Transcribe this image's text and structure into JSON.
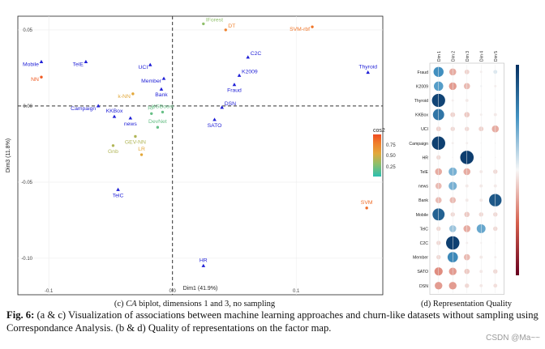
{
  "biplot": {
    "xlabel": "Dim1 (41.9%)",
    "ylabel": "Dim3 (11.8%)",
    "legend_title": "cos2",
    "legend_ticks": [
      "0.75",
      "0.50",
      "0.25"
    ],
    "caption_label": "(c)",
    "caption_italic": "CA",
    "caption_rest": "biplot, dimensions 1 and 3, no sampling"
  },
  "chart_data": {
    "type": "scatter",
    "title": "CA biplot, dimensions 1 and 3, no sampling",
    "xlabel": "Dim1 (41.9%)",
    "ylabel": "Dim3 (11.8%)",
    "xlim": [
      -0.125,
      0.17
    ],
    "ylim": [
      -0.124,
      0.059
    ],
    "x_ticks": [
      {
        "v": -0.1,
        "label": "-0.1"
      },
      {
        "v": 0.0,
        "label": "0.0"
      },
      {
        "v": 0.1,
        "label": "0.1"
      }
    ],
    "y_ticks": [
      {
        "v": 0.05,
        "label": "0.05"
      },
      {
        "v": 0.0,
        "label": "0.00"
      },
      {
        "v": -0.05,
        "label": "-0.05"
      },
      {
        "v": -0.1,
        "label": "-0.10"
      }
    ],
    "colorbar": {
      "label": "cos2",
      "min": 0.1,
      "max": 0.9
    },
    "points": [
      {
        "label": "IForest",
        "x": 0.025,
        "y": 0.054,
        "cos2": 0.35,
        "shape": "circle",
        "align": "left"
      },
      {
        "label": "DT",
        "x": 0.043,
        "y": 0.05,
        "cos2": 0.78,
        "shape": "circle",
        "align": "left"
      },
      {
        "label": "SVM-rbf",
        "x": 0.113,
        "y": 0.052,
        "cos2": 0.82,
        "shape": "circle",
        "align": "right"
      },
      {
        "label": "C2C",
        "x": 0.061,
        "y": 0.032,
        "cos2": 0.0,
        "shape": "triangle",
        "align": "left"
      },
      {
        "label": "Mobile",
        "x": -0.106,
        "y": 0.029,
        "cos2": 0.0,
        "shape": "triangle",
        "align": "right"
      },
      {
        "label": "TelE",
        "x": -0.07,
        "y": 0.029,
        "cos2": 0.0,
        "shape": "triangle",
        "align": "right"
      },
      {
        "label": "UCI",
        "x": -0.018,
        "y": 0.027,
        "cos2": 0.0,
        "shape": "triangle",
        "align": "right"
      },
      {
        "label": "Thyroid",
        "x": 0.158,
        "y": 0.022,
        "cos2": 0.0,
        "shape": "triangle",
        "align": "above"
      },
      {
        "label": "K2009",
        "x": 0.054,
        "y": 0.02,
        "cos2": 0.0,
        "shape": "triangle",
        "align": "left"
      },
      {
        "label": "NN",
        "x": -0.106,
        "y": 0.019,
        "cos2": 0.9,
        "shape": "circle",
        "align": "right"
      },
      {
        "label": "Member",
        "x": -0.007,
        "y": 0.018,
        "cos2": 0.0,
        "shape": "triangle",
        "align": "right"
      },
      {
        "label": "Fraud",
        "x": 0.05,
        "y": 0.014,
        "cos2": 0.0,
        "shape": "triangle",
        "align": "below"
      },
      {
        "label": "Bank",
        "x": -0.009,
        "y": 0.011,
        "cos2": 0.0,
        "shape": "triangle",
        "align": "below"
      },
      {
        "label": "k-NN",
        "x": -0.032,
        "y": 0.008,
        "cos2": 0.6,
        "shape": "circle",
        "align": "right"
      },
      {
        "label": "Campaign",
        "x": -0.06,
        "y": 0.0,
        "cos2": 0.0,
        "shape": "triangle",
        "align": "right"
      },
      {
        "label": "DSN",
        "x": 0.04,
        "y": -0.001,
        "cos2": 0.0,
        "shape": "triangle",
        "align": "left"
      },
      {
        "label": "KKBox",
        "x": -0.047,
        "y": -0.007,
        "cos2": 0.0,
        "shape": "triangle",
        "align": "above"
      },
      {
        "label": "RF",
        "x": -0.017,
        "y": -0.005,
        "cos2": 0.25,
        "shape": "circle",
        "align": "above"
      },
      {
        "label": "XGBoost",
        "x": -0.008,
        "y": -0.004,
        "cos2": 0.25,
        "shape": "circle",
        "align": "above"
      },
      {
        "label": "news",
        "x": -0.034,
        "y": -0.008,
        "cos2": 0.0,
        "shape": "triangle",
        "align": "below"
      },
      {
        "label": "SATO",
        "x": 0.034,
        "y": -0.009,
        "cos2": 0.0,
        "shape": "triangle",
        "align": "below"
      },
      {
        "label": "DevNet",
        "x": -0.012,
        "y": -0.014,
        "cos2": 0.25,
        "shape": "circle",
        "align": "above"
      },
      {
        "label": "GEV-NN",
        "x": -0.03,
        "y": -0.02,
        "cos2": 0.45,
        "shape": "circle",
        "align": "below"
      },
      {
        "label": "Gnb",
        "x": -0.048,
        "y": -0.026,
        "cos2": 0.45,
        "shape": "circle",
        "align": "below"
      },
      {
        "label": "LR",
        "x": -0.025,
        "y": -0.032,
        "cos2": 0.6,
        "shape": "circle",
        "align": "above"
      },
      {
        "label": "TelC",
        "x": -0.044,
        "y": -0.055,
        "cos2": 0.0,
        "shape": "triangle",
        "align": "below"
      },
      {
        "label": "SVM",
        "x": 0.157,
        "y": -0.067,
        "cos2": 0.85,
        "shape": "circle",
        "align": "above"
      },
      {
        "label": "HR",
        "x": 0.025,
        "y": -0.105,
        "cos2": 0.0,
        "shape": "triangle",
        "align": "above"
      }
    ]
  },
  "corrplot": {
    "columns": [
      "Dim 1",
      "Dim 2",
      "Dim 3",
      "Dim 4",
      "Dim 5"
    ],
    "rows": [
      "Fraud",
      "K2009",
      "Thyroid",
      "KKBox",
      "UCI",
      "Campaign",
      "HR",
      "TelE",
      "news",
      "Bank",
      "Mobile",
      "TelC",
      "C2C",
      "Member",
      "SATO",
      "DSN"
    ],
    "values": [
      [
        0.52,
        0.25,
        0.12,
        0.03,
        0.08
      ],
      [
        0.45,
        0.3,
        0.2,
        0.02,
        0.03
      ],
      [
        0.9,
        0.03,
        0.05,
        0.01,
        0.01
      ],
      [
        0.65,
        0.12,
        0.15,
        0.03,
        0.05
      ],
      [
        0.12,
        0.1,
        0.1,
        0.12,
        0.25
      ],
      [
        0.92,
        0.03,
        0.03,
        0.01,
        0.01
      ],
      [
        0.1,
        0.01,
        0.93,
        0.01,
        0.01
      ],
      [
        0.25,
        0.35,
        0.25,
        0.05,
        0.1
      ],
      [
        0.2,
        0.35,
        0.05,
        0.05,
        0.05
      ],
      [
        0.2,
        0.2,
        0.05,
        0.05,
        0.8
      ],
      [
        0.75,
        0.1,
        0.15,
        0.1,
        0.1
      ],
      [
        0.1,
        0.25,
        0.25,
        0.4,
        0.1
      ],
      [
        0.1,
        0.92,
        0.03,
        0.02,
        0.01
      ],
      [
        0.1,
        0.55,
        0.2,
        0.05,
        0.03
      ],
      [
        0.35,
        0.3,
        0.15,
        0.05,
        0.1
      ],
      [
        0.3,
        0.3,
        0.1,
        0.05,
        0.08
      ]
    ],
    "signs": [
      [
        -1,
        1,
        1,
        1,
        -1
      ],
      [
        -1,
        1,
        1,
        -1,
        1
      ],
      [
        -1,
        1,
        1,
        1,
        1
      ],
      [
        -1,
        1,
        1,
        1,
        1
      ],
      [
        1,
        1,
        1,
        1,
        1
      ],
      [
        -1,
        1,
        1,
        1,
        1
      ],
      [
        1,
        1,
        -1,
        1,
        1
      ],
      [
        1,
        -1,
        1,
        1,
        1
      ],
      [
        1,
        -1,
        1,
        1,
        1
      ],
      [
        1,
        1,
        1,
        1,
        -1
      ],
      [
        -1,
        1,
        1,
        1,
        1
      ],
      [
        1,
        -1,
        1,
        -1,
        1
      ],
      [
        1,
        -1,
        1,
        1,
        1
      ],
      [
        1,
        -1,
        1,
        1,
        1
      ],
      [
        1,
        1,
        1,
        1,
        1
      ],
      [
        1,
        1,
        1,
        1,
        1
      ]
    ],
    "caption": "(d) Representation Quality"
  },
  "figure_caption": {
    "label": "Fig. 6:",
    "text": "(a & c) Visualization of associations between machine learning approaches and churn-like datasets without sampling using Correspondance Analysis. (b & d) Quality of representations on the factor map."
  },
  "watermark": "CSDN @Ma~~"
}
